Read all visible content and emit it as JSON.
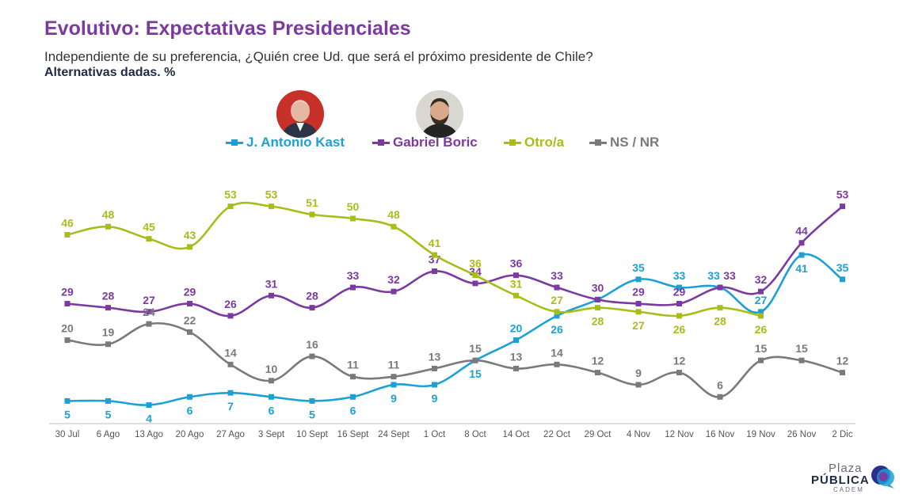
{
  "header": {
    "title": "Evolutivo: Expectativas Presidenciales",
    "subtitle": "Independiente de su preferencia, ¿Quién cree Ud. que será el próximo presidente de Chile?",
    "note": "Alternativas dadas. %"
  },
  "colors": {
    "title": "#7b3aa0",
    "kast": "#1ba1d6",
    "boric": "#7b3aa0",
    "otro": "#a8bd1a",
    "nsnr": "#7a7a7a"
  },
  "logo": {
    "line1": "Plaza",
    "line2": "PÚBLICA",
    "line3": "CADEM"
  },
  "chart_data": {
    "type": "line",
    "title": "Evolutivo: Expectativas Presidenciales",
    "xlabel": "",
    "ylabel": "",
    "ylim": [
      0,
      60
    ],
    "grid": false,
    "legend_position": "top-center",
    "categories": [
      "30 Jul",
      "6 Ago",
      "13 Ago",
      "20 Ago",
      "27 Ago",
      "3 Sept",
      "10 Sept",
      "16 Sept",
      "24 Sept",
      "1 Oct",
      "8 Oct",
      "14 Oct",
      "22 Oct",
      "29 Oct",
      "4 Nov",
      "12 Nov",
      "16 Nov",
      "19 Nov",
      "26 Nov",
      "2 Dic"
    ],
    "series": [
      {
        "name": "J. Antonio Kast",
        "color": "#1ba1d6",
        "values": [
          5,
          5,
          4,
          6,
          7,
          6,
          5,
          6,
          9,
          9,
          15,
          20,
          26,
          30,
          35,
          33,
          33,
          27,
          41,
          35
        ]
      },
      {
        "name": "Gabriel Boric",
        "color": "#7b3aa0",
        "values": [
          29,
          28,
          27,
          29,
          26,
          31,
          28,
          33,
          32,
          37,
          34,
          36,
          33,
          30,
          29,
          29,
          33,
          32,
          44,
          53
        ]
      },
      {
        "name": "Otro/a",
        "color": "#a8bd1a",
        "values": [
          46,
          48,
          45,
          43,
          53,
          53,
          51,
          50,
          48,
          41,
          36,
          31,
          27,
          28,
          27,
          26,
          28,
          26,
          null,
          null
        ]
      },
      {
        "name": "NS / NR",
        "color": "#7a7a7a",
        "values": [
          20,
          19,
          24,
          22,
          14,
          10,
          16,
          11,
          11,
          13,
          15,
          13,
          14,
          12,
          9,
          12,
          6,
          15,
          15,
          12
        ]
      }
    ]
  }
}
